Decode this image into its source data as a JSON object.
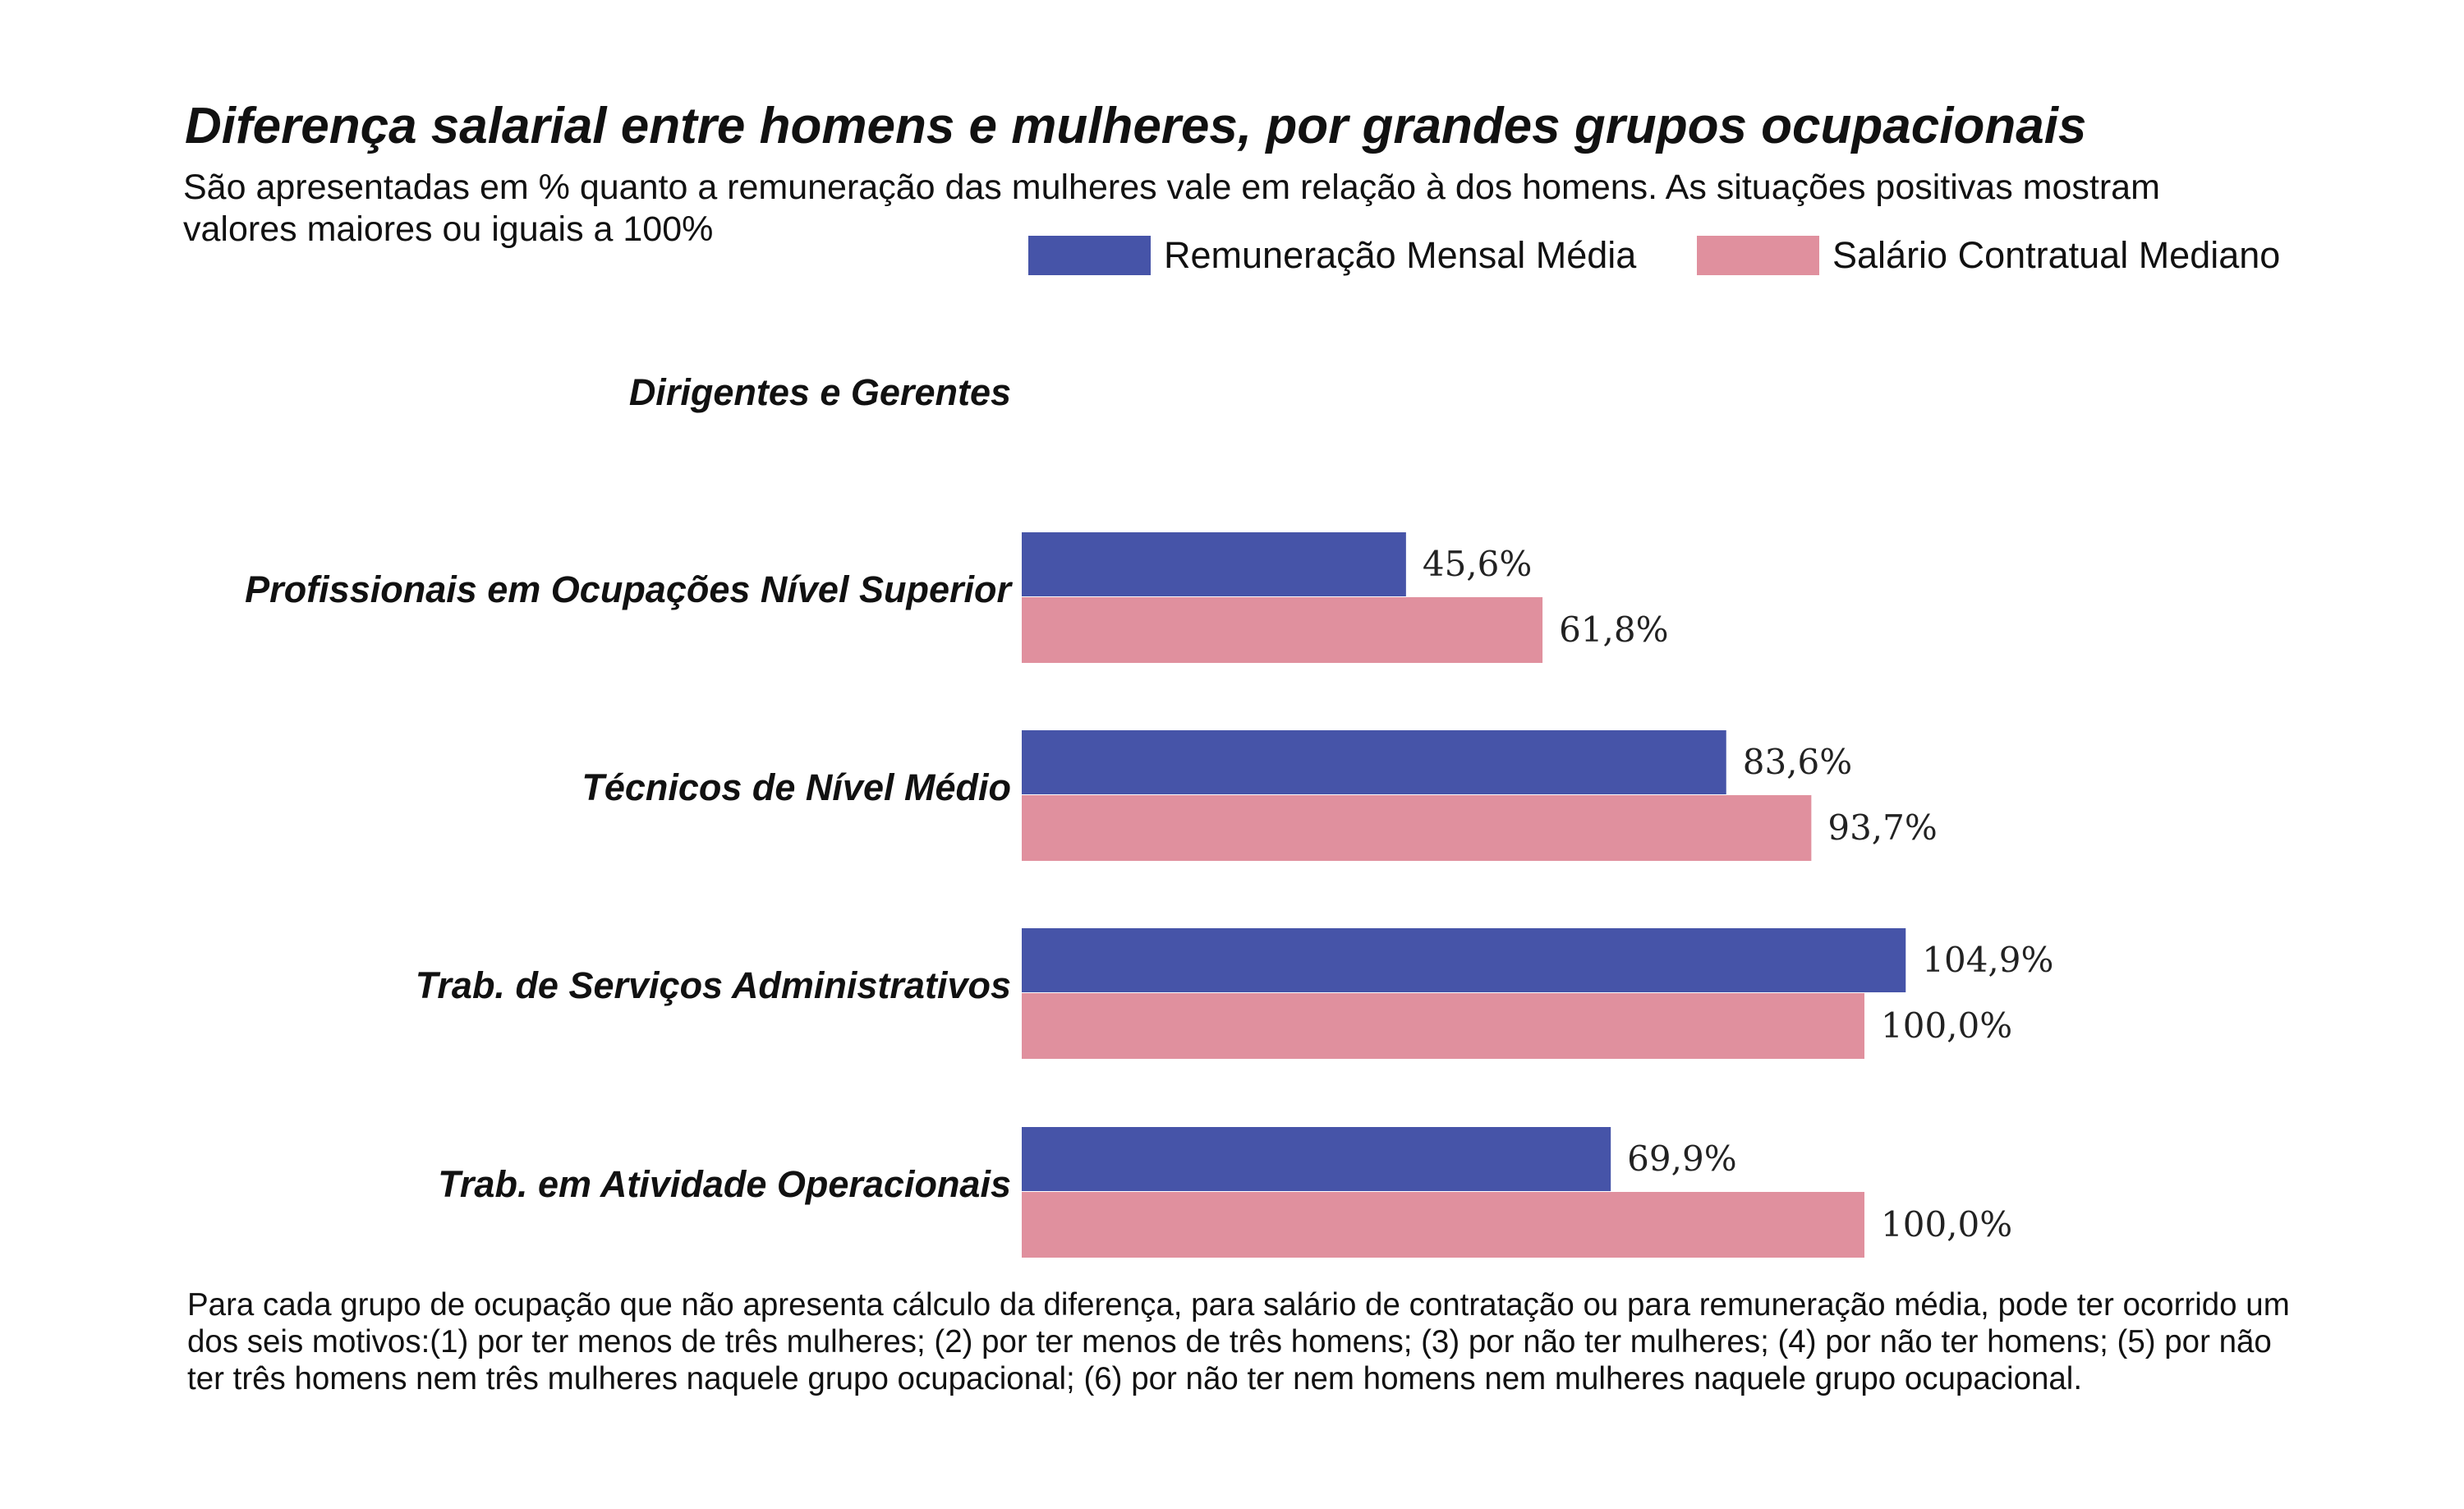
{
  "chart_data": {
    "type": "bar",
    "orientation": "horizontal",
    "title": "Diferença salarial entre homens e mulheres, por grandes grupos ocupacionais",
    "subtitle": "São apresentadas em % quanto a remuneração das mulheres vale em relação à dos homens. As situações positivas mostram valores maiores ou iguais a 100%",
    "categories": [
      "Dirigentes e Gerentes",
      "Profissionais em Ocupações Nível Superior",
      "Técnicos de Nível Médio",
      "Trab. de Serviços Administrativos",
      "Trab. em Atividade Operacionais"
    ],
    "series": [
      {
        "name": "Remuneração Mensal Média",
        "color": "#4654a8",
        "values": [
          null,
          45.6,
          83.6,
          104.9,
          69.9
        ],
        "labels": [
          "",
          "45,6%",
          "83,6%",
          "104,9%",
          "69,9%"
        ]
      },
      {
        "name": "Salário Contratual Mediano",
        "color": "#e0909e",
        "values": [
          null,
          61.8,
          93.7,
          100.0,
          100.0
        ],
        "labels": [
          "",
          "61,8%",
          "93,7%",
          "100,0%",
          "100,0%"
        ]
      }
    ],
    "xlabel": "",
    "ylabel": "",
    "xlim": [
      0,
      120
    ],
    "grid": false,
    "legend_position": "top-right"
  },
  "footer": "Para cada grupo de ocupação que não apresenta cálculo da diferença, para salário de contratação ou para remuneração média, pode ter ocorrido um dos seis motivos:(1) por ter menos de três mulheres; (2) por ter menos de três homens; (3) por não ter mulheres; (4) por não ter homens; (5) por não ter três homens nem três mulheres naquele grupo ocupacional; (6) por não ter nem homens nem mulheres naquele grupo ocupacional."
}
